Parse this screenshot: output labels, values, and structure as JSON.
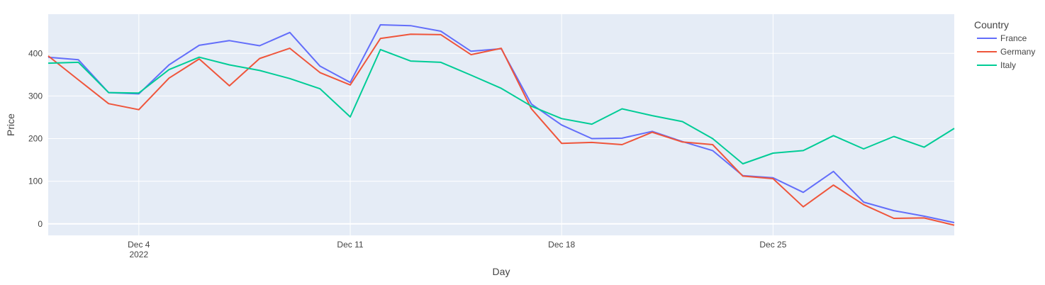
{
  "chart_data": {
    "type": "line",
    "xlabel": "Day",
    "ylabel": "Price",
    "x_range": [
      "2022-12-01",
      "2022-12-31"
    ],
    "ylim": [
      -27,
      492
    ],
    "y_ticks": [
      0,
      100,
      200,
      300,
      400
    ],
    "x_ticks": [
      {
        "date": "2022-12-04",
        "label": "Dec 4",
        "sublabel": "2022"
      },
      {
        "date": "2022-12-11",
        "label": "Dec 11",
        "sublabel": ""
      },
      {
        "date": "2022-12-18",
        "label": "Dec 18",
        "sublabel": ""
      },
      {
        "date": "2022-12-25",
        "label": "Dec 25",
        "sublabel": ""
      }
    ],
    "grid": true,
    "legend": {
      "title": "Country",
      "position": "top-right, outside plot"
    },
    "x": [
      "2022-12-01",
      "2022-12-02",
      "2022-12-03",
      "2022-12-04",
      "2022-12-05",
      "2022-12-06",
      "2022-12-07",
      "2022-12-08",
      "2022-12-09",
      "2022-12-10",
      "2022-12-11",
      "2022-12-12",
      "2022-12-13",
      "2022-12-14",
      "2022-12-15",
      "2022-12-16",
      "2022-12-17",
      "2022-12-18",
      "2022-12-19",
      "2022-12-20",
      "2022-12-21",
      "2022-12-22",
      "2022-12-23",
      "2022-12-24",
      "2022-12-25",
      "2022-12-26",
      "2022-12-27",
      "2022-12-28",
      "2022-12-29",
      "2022-12-30",
      "2022-12-31"
    ],
    "series": [
      {
        "name": "France",
        "color": "#636efa",
        "values": [
          391,
          385,
          308,
          305,
          373,
          419,
          430,
          418,
          449,
          370,
          332,
          467,
          465,
          452,
          405,
          411,
          281,
          232,
          200,
          201,
          217,
          193,
          172,
          113,
          108,
          74,
          123,
          51,
          31,
          18,
          3
        ]
      },
      {
        "name": "Germany",
        "color": "#ef553b",
        "values": [
          394,
          338,
          282,
          268,
          342,
          387,
          324,
          388,
          412,
          355,
          326,
          435,
          445,
          444,
          397,
          412,
          270,
          189,
          191,
          186,
          215,
          192,
          186,
          112,
          106,
          40,
          91,
          45,
          13,
          14,
          -3
        ]
      },
      {
        "name": "Italy",
        "color": "#00cc96",
        "values": [
          377,
          379,
          308,
          307,
          362,
          391,
          373,
          360,
          341,
          317,
          251,
          409,
          382,
          379,
          349,
          318,
          276,
          247,
          234,
          270,
          254,
          240,
          200,
          141,
          166,
          172,
          207,
          176,
          205,
          180,
          224
        ]
      }
    ]
  }
}
